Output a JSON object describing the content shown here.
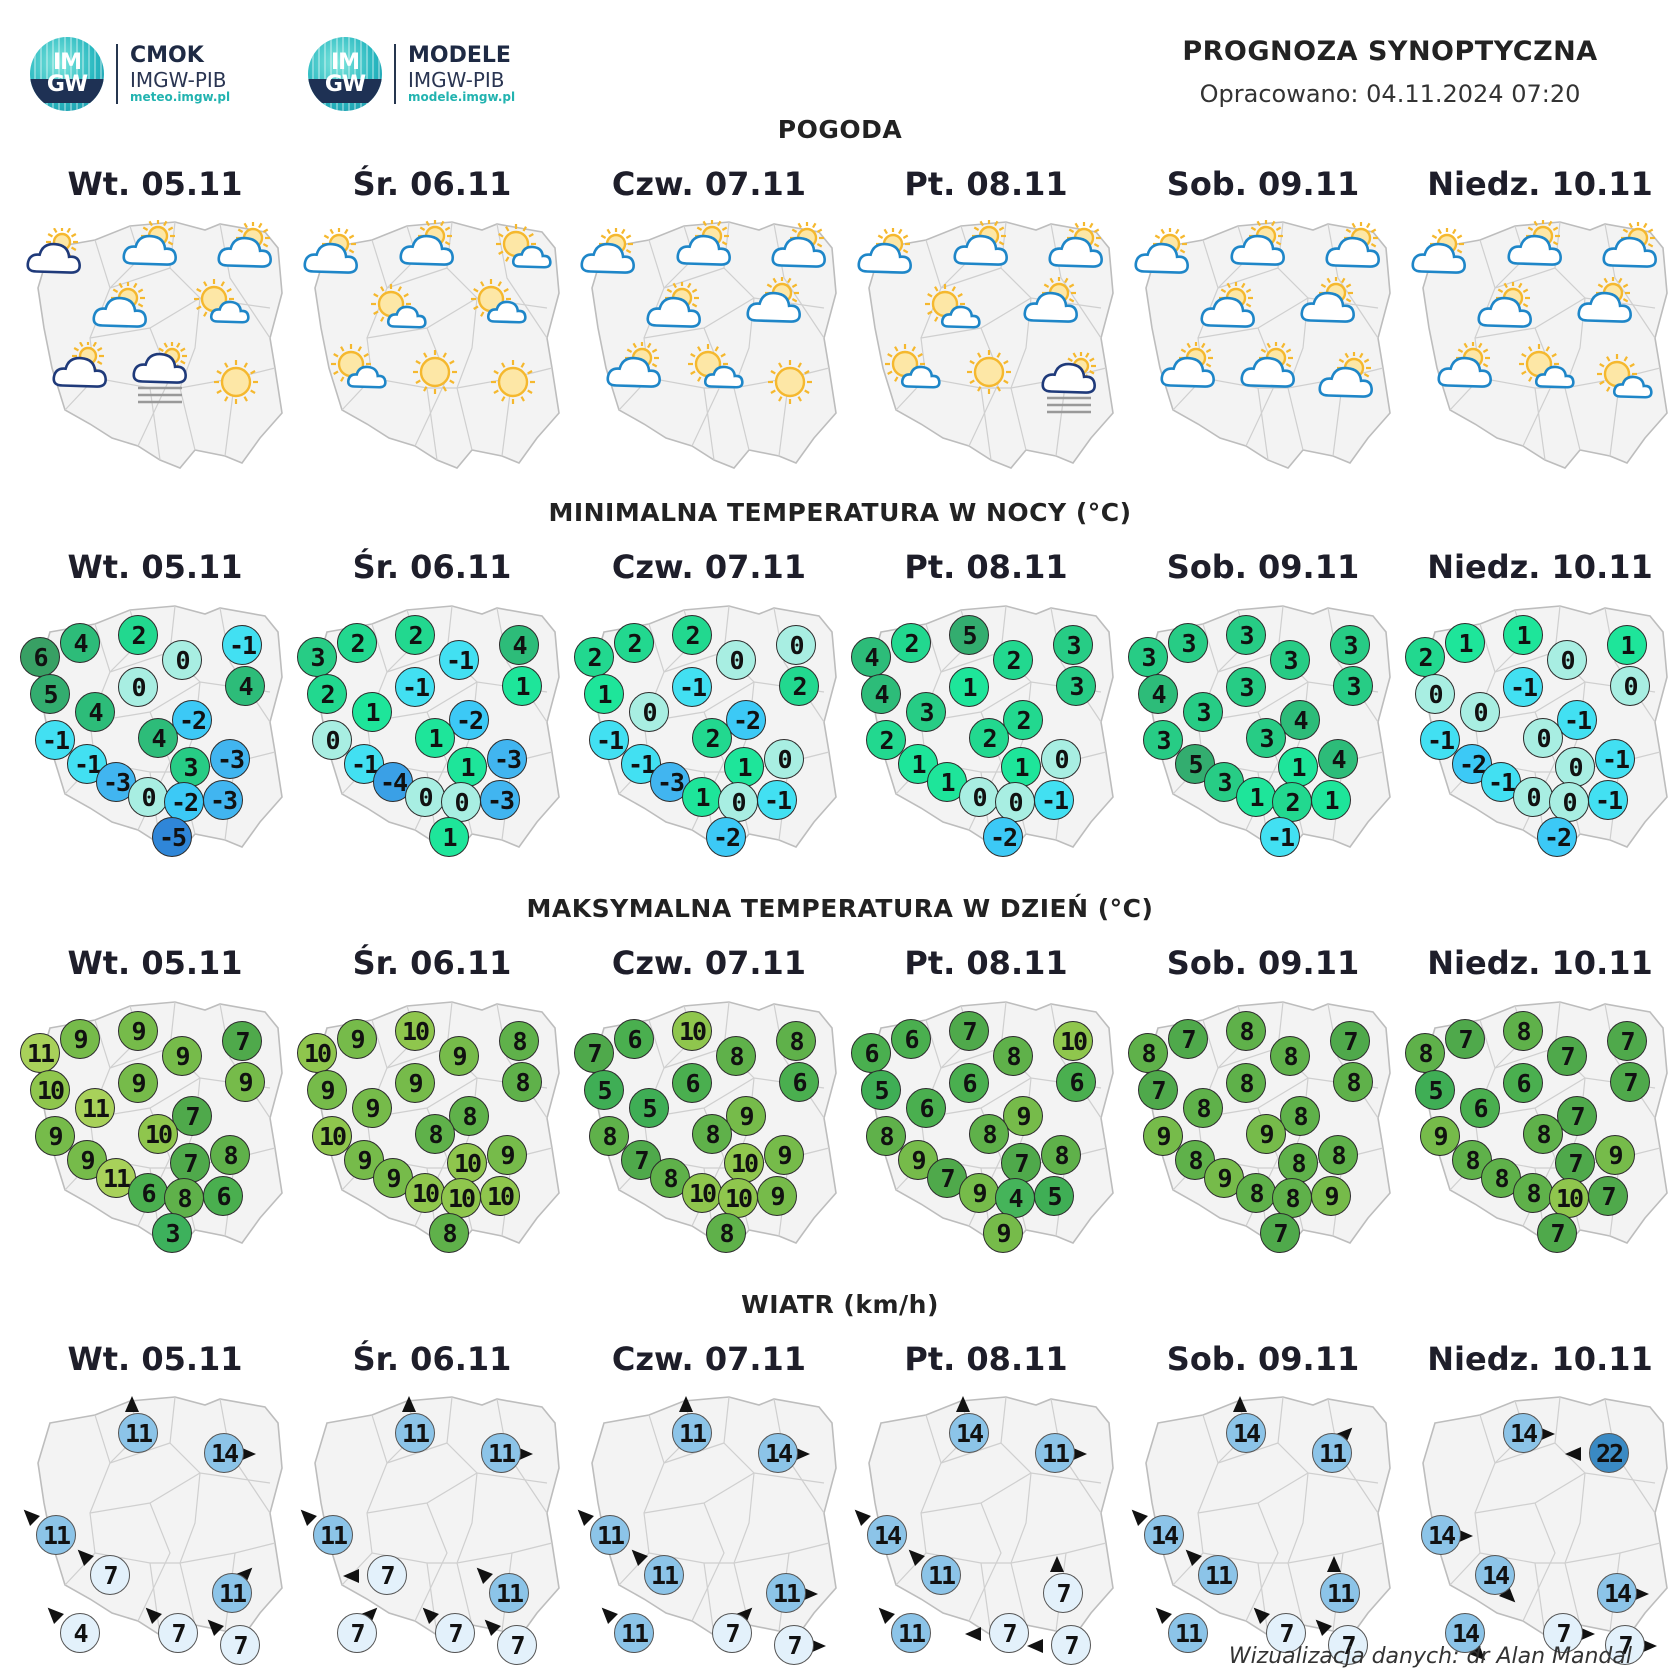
{
  "logos": [
    {
      "name": "CMOK",
      "org": "IMGW-PIB",
      "url": "meteo.imgw.pl",
      "badge": "IM GW"
    },
    {
      "name": "MODELE",
      "org": "IMGW-PIB",
      "url": "modele.imgw.pl",
      "badge": "IM GW"
    }
  ],
  "header": {
    "title": "PROGNOZA SYNOPTYCZNA",
    "subtitle": "Opracowano: 04.11.2024 07:20"
  },
  "days": [
    "Wt. 05.11",
    "Śr. 06.11",
    "Czw. 07.11",
    "Pt. 08.11",
    "Sob. 09.11",
    "Niedz. 10.11"
  ],
  "sections": {
    "weather": "POGODA",
    "tmin": "MINIMALNA TEMPERATURA W NOCY (°C)",
    "tmax": "MAKSYMALNA TEMPERATURA W DZIEŃ (°C)",
    "wind": "WIATR (km/h)"
  },
  "weather_icons": [
    [
      "cloud-sun-dark-icon",
      "cloud-sun-icon",
      "cloud-sun-icon",
      "cloud-sun-icon",
      "partly-sunny-icon",
      "cloud-sun-dark-icon",
      "cloud-fog-icon",
      "sun-icon"
    ],
    [
      "cloud-sun-icon",
      "cloud-sun-icon",
      "partly-sunny-icon",
      "partly-sunny-icon",
      "partly-sunny-icon",
      "partly-sunny-icon",
      "sun-icon",
      "sun-icon"
    ],
    [
      "cloud-sun-icon",
      "cloud-sun-icon",
      "cloud-sun-icon",
      "cloud-sun-icon",
      "cloud-sun-icon",
      "cloud-sun-icon",
      "partly-sunny-icon",
      "sun-icon"
    ],
    [
      "cloud-sun-icon",
      "cloud-sun-icon",
      "cloud-sun-icon",
      "partly-sunny-icon",
      "cloud-sun-icon",
      "partly-sunny-icon",
      "sun-icon",
      "cloud-fog-icon"
    ],
    [
      "cloud-sun-icon",
      "cloud-sun-icon",
      "cloud-sun-icon",
      "cloud-sun-icon",
      "cloud-sun-icon",
      "cloud-sun-icon",
      "cloud-sun-icon",
      "cloud-sun-icon"
    ],
    [
      "cloud-sun-icon",
      "cloud-sun-icon",
      "cloud-sun-icon",
      "cloud-sun-icon",
      "cloud-sun-icon",
      "cloud-sun-icon",
      "partly-sunny-icon",
      "partly-sunny-icon"
    ]
  ],
  "tmin": [
    [
      6,
      4,
      2,
      0,
      -1,
      5,
      4,
      0,
      -2,
      4,
      -1,
      -1,
      4,
      3,
      -3,
      -3,
      0,
      -2,
      -3,
      -5
    ],
    [
      3,
      2,
      2,
      -1,
      4,
      2,
      1,
      -1,
      -2,
      1,
      0,
      -1,
      1,
      1,
      -3,
      -4,
      0,
      0,
      -3,
      1
    ],
    [
      2,
      2,
      2,
      0,
      0,
      1,
      0,
      -1,
      -2,
      2,
      -1,
      -1,
      2,
      1,
      0,
      -3,
      1,
      0,
      -1,
      -2
    ],
    [
      4,
      2,
      5,
      2,
      3,
      4,
      3,
      1,
      2,
      3,
      2,
      1,
      2,
      1,
      0,
      1,
      0,
      0,
      -1,
      -2
    ],
    [
      3,
      3,
      3,
      3,
      3,
      4,
      3,
      3,
      4,
      3,
      3,
      5,
      3,
      1,
      4,
      3,
      1,
      2,
      1,
      -1
    ],
    [
      2,
      1,
      1,
      0,
      1,
      0,
      0,
      -1,
      -1,
      0,
      -1,
      -2,
      0,
      0,
      -1,
      -1,
      0,
      0,
      -1,
      -2
    ]
  ],
  "tmax": [
    [
      11,
      9,
      9,
      9,
      7,
      10,
      11,
      9,
      7,
      9,
      9,
      9,
      10,
      7,
      8,
      11,
      6,
      8,
      6,
      3
    ],
    [
      10,
      9,
      10,
      9,
      8,
      9,
      9,
      9,
      8,
      8,
      10,
      9,
      8,
      10,
      9,
      9,
      10,
      10,
      10,
      8
    ],
    [
      7,
      6,
      10,
      8,
      8,
      5,
      5,
      6,
      9,
      6,
      8,
      7,
      8,
      10,
      9,
      8,
      10,
      10,
      9,
      8
    ],
    [
      6,
      6,
      7,
      8,
      10,
      5,
      6,
      6,
      9,
      6,
      8,
      9,
      8,
      7,
      8,
      7,
      9,
      4,
      5,
      9
    ],
    [
      8,
      7,
      8,
      8,
      7,
      7,
      8,
      8,
      8,
      8,
      9,
      8,
      9,
      8,
      8,
      9,
      8,
      8,
      9,
      7
    ],
    [
      8,
      7,
      8,
      7,
      7,
      5,
      6,
      6,
      7,
      7,
      9,
      8,
      8,
      7,
      9,
      8,
      8,
      10,
      7,
      7
    ]
  ],
  "wind": [
    [
      {
        "v": 11,
        "d": "nw"
      },
      {
        "v": 11,
        "d": "n"
      },
      {
        "v": 14,
        "d": "e"
      },
      {
        "v": 7,
        "d": "nw"
      },
      {
        "v": 11,
        "d": "ne"
      },
      {
        "v": 4,
        "d": "nw"
      },
      {
        "v": 7,
        "d": "nw"
      },
      {
        "v": 7,
        "d": "nw"
      }
    ],
    [
      {
        "v": 11,
        "d": "nw"
      },
      {
        "v": 11,
        "d": "n"
      },
      {
        "v": 11,
        "d": "e"
      },
      {
        "v": 7,
        "d": "w"
      },
      {
        "v": 11,
        "d": "nw"
      },
      {
        "v": 7,
        "d": "ne"
      },
      {
        "v": 7,
        "d": "nw"
      },
      {
        "v": 7,
        "d": "nw"
      }
    ],
    [
      {
        "v": 11,
        "d": "nw"
      },
      {
        "v": 11,
        "d": "n"
      },
      {
        "v": 14,
        "d": "e"
      },
      {
        "v": 11,
        "d": "nw"
      },
      {
        "v": 11,
        "d": "e"
      },
      {
        "v": 11,
        "d": "nw"
      },
      {
        "v": 7,
        "d": "ne"
      },
      {
        "v": 7,
        "d": "e"
      }
    ],
    [
      {
        "v": 14,
        "d": "nw"
      },
      {
        "v": 14,
        "d": "n"
      },
      {
        "v": 11,
        "d": "e"
      },
      {
        "v": 11,
        "d": "nw"
      },
      {
        "v": 7,
        "d": "n"
      },
      {
        "v": 11,
        "d": "nw"
      },
      {
        "v": 7,
        "d": "w"
      },
      {
        "v": 7,
        "d": "w"
      }
    ],
    [
      {
        "v": 14,
        "d": "nw"
      },
      {
        "v": 14,
        "d": "n"
      },
      {
        "v": 11,
        "d": "ne"
      },
      {
        "v": 11,
        "d": "nw"
      },
      {
        "v": 11,
        "d": "n"
      },
      {
        "v": 11,
        "d": "nw"
      },
      {
        "v": 7,
        "d": "nw"
      },
      {
        "v": 7,
        "d": "nw"
      }
    ],
    [
      {
        "v": 14,
        "d": "e"
      },
      {
        "v": 14,
        "d": "e"
      },
      {
        "v": 22,
        "d": "w"
      },
      {
        "v": 14,
        "d": "se"
      },
      {
        "v": 14,
        "d": "e"
      },
      {
        "v": 14,
        "d": "se"
      },
      {
        "v": 7,
        "d": "e"
      },
      {
        "v": 7,
        "d": "e"
      }
    ]
  ],
  "colors": {
    "map_fill": "#f3f3f3",
    "map_border": "#bdbdbd",
    "wind_low": "#e3f1fb",
    "wind_mid": "#8cc4e8",
    "wind_high": "#3a8ac4",
    "sun": "#f5b82e",
    "cloud_light": "#1e86c8",
    "cloud_dark": "#1f3a7a"
  },
  "credit": "Wizualizacja danych: dr Alan Mandal"
}
